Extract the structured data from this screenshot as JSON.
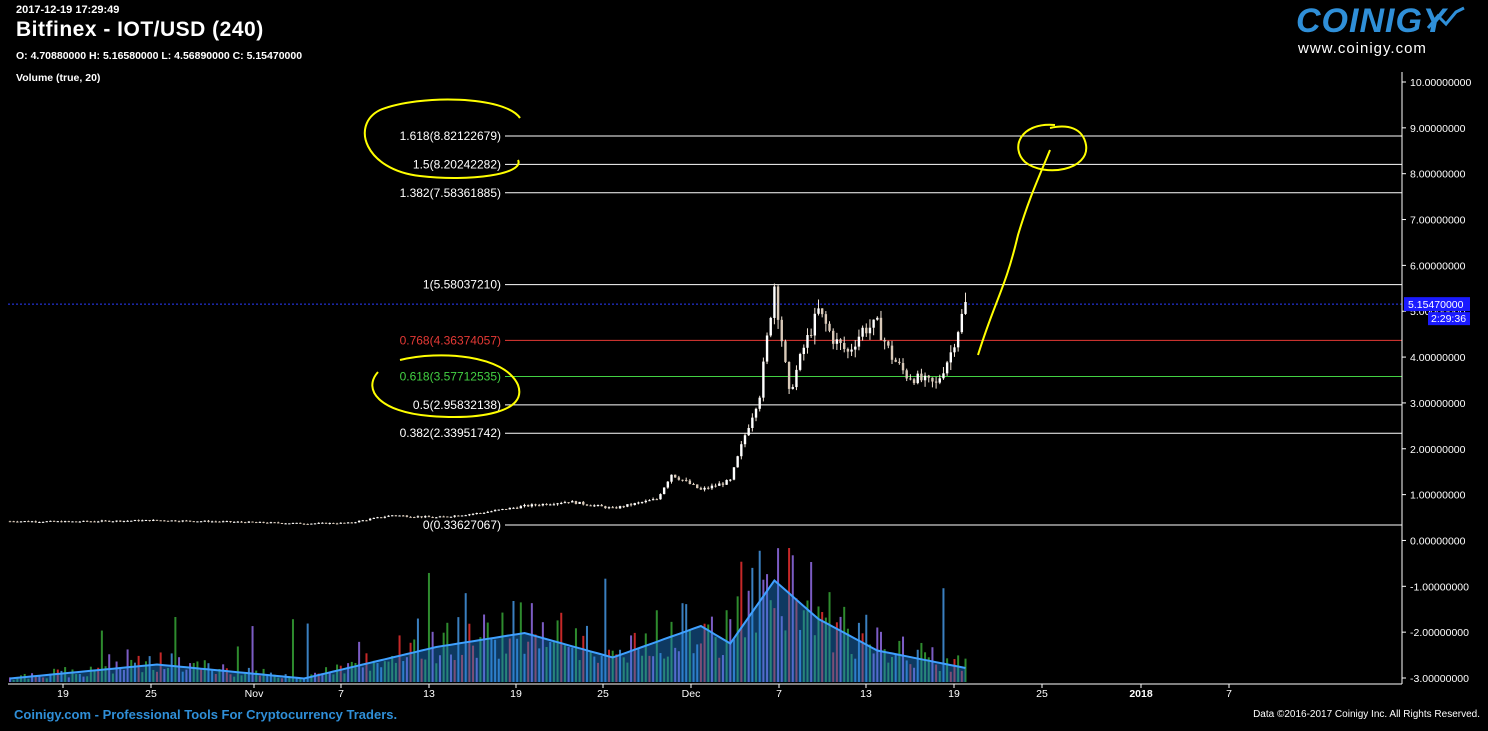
{
  "header": {
    "timestamp": "2017-12-19 17:29:49",
    "title": "Bitfinex - IOT/USD (240)",
    "ohlc": "O: 4.70880000 H: 5.16580000 L: 4.56890000 C: 5.15470000",
    "volume_label": "Volume (true, 20)"
  },
  "logo": {
    "name": "COINIGY",
    "url": "www.coinigy.com"
  },
  "footer": {
    "left": "Coinigy.com - Professional Tools For Cryptocurrency Traders.",
    "right": "Data ©2016-2017 Coinigy Inc. All Rights Reserved."
  },
  "colors": {
    "background": "#000000",
    "up": "#2e8b2e",
    "down": "#c62828",
    "accent": "#2f8fd8",
    "annotation": "#ffff00"
  },
  "chart_data": {
    "type": "candlestick",
    "ylim": [
      -3,
      10.3
    ],
    "y_ticks": [
      "10.00000000",
      "9.00000000",
      "8.00000000",
      "7.00000000",
      "6.00000000",
      "5.00000000",
      "4.00000000",
      "3.00000000",
      "2.00000000",
      "1.00000000",
      "0.00000000",
      "-1.00000000",
      "-2.00000000",
      "-3.00000000"
    ],
    "x_ticks": [
      "19",
      "25",
      "Nov",
      "7",
      "13",
      "19",
      "25",
      "Dec",
      "7",
      "13",
      "19",
      "25",
      "2018",
      "7"
    ],
    "last_price": {
      "label": "5.15470000",
      "value": 5.1547,
      "countdown": "2:29:36"
    },
    "fib_levels": [
      {
        "label": "1.618(8.82122679)",
        "value": 8.82122679,
        "color": "#ffffff"
      },
      {
        "label": "1.5(8.20242282)",
        "value": 8.20242282,
        "color": "#ffffff"
      },
      {
        "label": "1.382(7.58361885)",
        "value": 7.58361885,
        "color": "#ffffff"
      },
      {
        "label": "1(5.58037210)",
        "value": 5.5803721,
        "color": "#ffffff"
      },
      {
        "label": "0.768(4.36374057)",
        "value": 4.36374057,
        "color": "#e53935"
      },
      {
        "label": "0.618(3.57712535)",
        "value": 3.57712535,
        "color": "#43d143"
      },
      {
        "label": "0.5(2.95832138)",
        "value": 2.95832138,
        "color": "#ffffff"
      },
      {
        "label": "0.382(2.33951742)",
        "value": 2.33951742,
        "color": "#ffffff"
      },
      {
        "label": "0(0.33627067)",
        "value": 0.33627067,
        "color": "#ffffff"
      }
    ],
    "price_path": [
      [
        "Oct 15",
        0.42
      ],
      [
        "Oct 19",
        0.41
      ],
      [
        "Oct 25",
        0.44
      ],
      [
        "Oct 31",
        0.4
      ],
      [
        "Nov 4",
        0.37
      ],
      [
        "Nov 7",
        0.38
      ],
      [
        "Nov 10",
        0.55
      ],
      [
        "Nov 13",
        0.5
      ],
      [
        "Nov 16",
        0.6
      ],
      [
        "Nov 19",
        0.75
      ],
      [
        "Nov 22",
        0.85
      ],
      [
        "Nov 25",
        0.7
      ],
      [
        "Nov 28",
        0.9
      ],
      [
        "Nov 29",
        1.45
      ],
      [
        "Dec 1",
        1.1
      ],
      [
        "Dec 3",
        1.3
      ],
      [
        "Dec 4",
        2.3
      ],
      [
        "Dec 5",
        3.2
      ],
      [
        "Dec 6",
        5.58
      ],
      [
        "Dec 7",
        3.2
      ],
      [
        "Dec 8",
        4.2
      ],
      [
        "Dec 9",
        5.0
      ],
      [
        "Dec 10",
        4.4
      ],
      [
        "Dec 11",
        4.1
      ],
      [
        "Dec 12",
        4.6
      ],
      [
        "Dec 13",
        4.7
      ],
      [
        "Dec 14",
        4.0
      ],
      [
        "Dec 15",
        3.6
      ],
      [
        "Dec 17",
        3.4
      ],
      [
        "Dec 18",
        4.1
      ],
      [
        "Dec 19",
        5.15
      ]
    ],
    "volume_envelope": [
      [
        "Oct 15",
        0.05
      ],
      [
        "Oct 25",
        0.25
      ],
      [
        "Nov 4",
        0.05
      ],
      [
        "Nov 10",
        0.35
      ],
      [
        "Nov 13",
        0.5
      ],
      [
        "Nov 19",
        0.7
      ],
      [
        "Nov 25",
        0.35
      ],
      [
        "Dec 1",
        0.8
      ],
      [
        "Dec 3",
        0.55
      ],
      [
        "Dec 6",
        1.45
      ],
      [
        "Dec 9",
        0.9
      ],
      [
        "Dec 13",
        0.45
      ],
      [
        "Dec 19",
        0.2
      ]
    ],
    "annotation": "yellow hand-drawn projection toward the 1.5 extension (~8.2)"
  }
}
